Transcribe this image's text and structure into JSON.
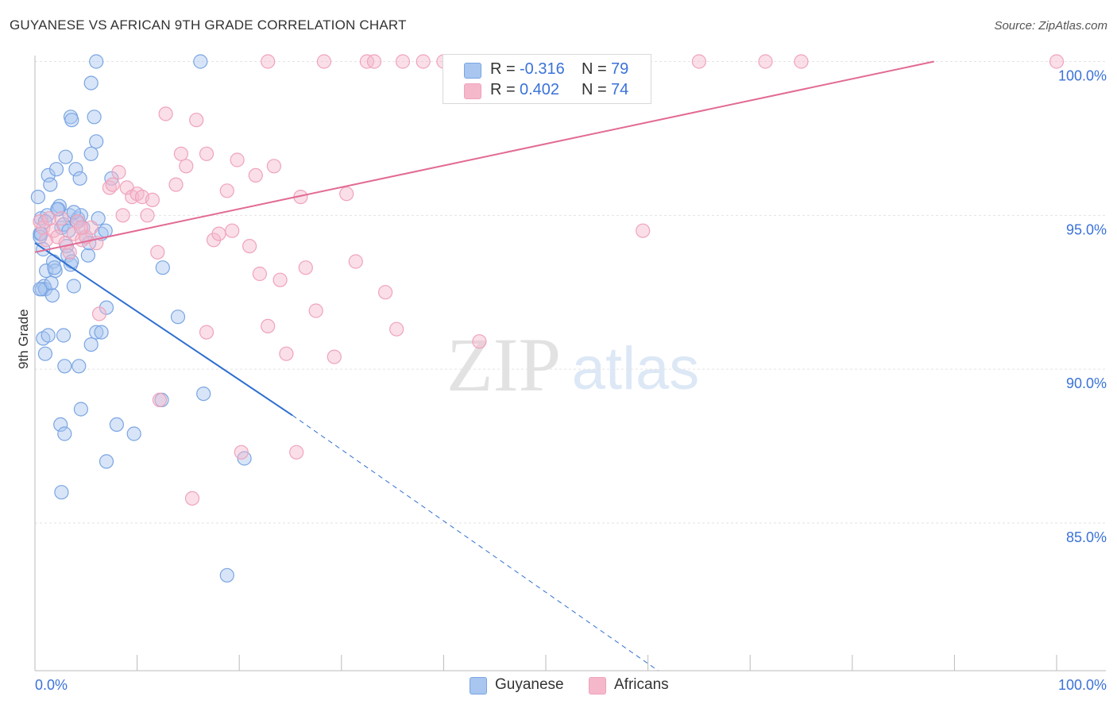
{
  "header": {
    "title": "GUYANESE VS AFRICAN 9TH GRADE CORRELATION CHART",
    "source": "Source: ZipAtlas.com"
  },
  "watermark": {
    "zip": "ZIP",
    "atlas": "atlas"
  },
  "legend": {
    "rows": [
      {
        "r_label": "R =",
        "r_value": "-0.316",
        "n_label": "N =",
        "n_value": "79",
        "color": "#a8c6ef"
      },
      {
        "r_label": "R =",
        "r_value": "0.402",
        "n_label": "N =",
        "n_value": "74",
        "color": "#f5b8cb"
      }
    ]
  },
  "bottom_legend": [
    {
      "label": "Guyanese",
      "color": "#a8c6ef"
    },
    {
      "label": "Africans",
      "color": "#f5b8cb"
    }
  ],
  "chart_data": {
    "type": "scatter",
    "title": "GUYANESE VS AFRICAN 9TH GRADE CORRELATION CHART",
    "xlabel": "",
    "ylabel": "9th Grade",
    "xlim": [
      0,
      100
    ],
    "ylim": [
      80.2,
      100.4
    ],
    "x_tick_labels": [
      "0.0%",
      "100.0%"
    ],
    "y_ticks": [
      85,
      90,
      95,
      100
    ],
    "y_tick_labels": [
      "85.0%",
      "90.0%",
      "95.0%",
      "100.0%"
    ],
    "grid": true,
    "legend_position": "top-center",
    "series": [
      {
        "name": "Guyanese",
        "color": "#7aa5e3",
        "fill": "#a8c6ef",
        "line_color": "#2e6fd0",
        "trend": {
          "x0": 0,
          "y0": 94.1,
          "x1": 25.2,
          "y1": 88.5,
          "dash_to_x": 61,
          "dash_to_y": 80.2
        },
        "points": [
          [
            0.3,
            95.6
          ],
          [
            0.5,
            94.4
          ],
          [
            0.6,
            94.9
          ],
          [
            0.5,
            94.3
          ],
          [
            0.8,
            93.9
          ],
          [
            0.9,
            92.7
          ],
          [
            0.7,
            92.6
          ],
          [
            1.0,
            92.6
          ],
          [
            1.2,
            95.0
          ],
          [
            1.1,
            93.2
          ],
          [
            1.3,
            96.3
          ],
          [
            1.5,
            96.0
          ],
          [
            1.7,
            92.4
          ],
          [
            1.6,
            92.8
          ],
          [
            1.8,
            93.5
          ],
          [
            2.0,
            93.2
          ],
          [
            2.1,
            96.5
          ],
          [
            2.3,
            95.2
          ],
          [
            2.4,
            95.3
          ],
          [
            2.6,
            94.6
          ],
          [
            2.8,
            94.7
          ],
          [
            3.0,
            96.9
          ],
          [
            3.1,
            94.0
          ],
          [
            3.2,
            93.7
          ],
          [
            3.4,
            95.0
          ],
          [
            3.5,
            93.4
          ],
          [
            3.6,
            93.5
          ],
          [
            3.8,
            92.7
          ],
          [
            4.0,
            96.5
          ],
          [
            4.2,
            94.9
          ],
          [
            4.4,
            96.2
          ],
          [
            4.5,
            95.0
          ],
          [
            4.7,
            94.6
          ],
          [
            5.0,
            94.3
          ],
          [
            5.2,
            93.7
          ],
          [
            5.5,
            97.0
          ],
          [
            5.8,
            98.2
          ],
          [
            6.0,
            97.4
          ],
          [
            6.2,
            94.9
          ],
          [
            6.5,
            94.4
          ],
          [
            3.5,
            98.2
          ],
          [
            3.6,
            98.1
          ],
          [
            5.5,
            99.3
          ],
          [
            6.0,
            100.0
          ],
          [
            0.8,
            91.0
          ],
          [
            1.3,
            91.1
          ],
          [
            1.0,
            90.5
          ],
          [
            2.8,
            91.1
          ],
          [
            2.9,
            90.1
          ],
          [
            4.3,
            90.1
          ],
          [
            5.5,
            90.8
          ],
          [
            6.0,
            91.2
          ],
          [
            6.5,
            91.2
          ],
          [
            7.0,
            92.0
          ],
          [
            7.5,
            96.2
          ],
          [
            4.5,
            88.7
          ],
          [
            2.5,
            88.2
          ],
          [
            2.9,
            87.9
          ],
          [
            8.0,
            88.2
          ],
          [
            9.7,
            87.9
          ],
          [
            7.0,
            87.0
          ],
          [
            2.6,
            86.0
          ],
          [
            12.5,
            93.3
          ],
          [
            14.0,
            91.7
          ],
          [
            12.4,
            89.0
          ],
          [
            16.5,
            89.2
          ],
          [
            16.2,
            100.0
          ],
          [
            20.5,
            87.1
          ],
          [
            18.8,
            83.3
          ],
          [
            1.0,
            94.8
          ],
          [
            0.6,
            94.4
          ],
          [
            2.2,
            95.2
          ],
          [
            3.3,
            94.5
          ],
          [
            5.3,
            94.1
          ],
          [
            1.9,
            93.3
          ],
          [
            0.5,
            92.6
          ],
          [
            4.1,
            94.8
          ],
          [
            3.8,
            95.1
          ],
          [
            6.9,
            94.5
          ]
        ]
      },
      {
        "name": "Africans",
        "color": "#f0a3bb",
        "fill": "#f5b8cb",
        "line_color": "#e26a93",
        "trend": {
          "x0": 0,
          "y0": 93.8,
          "x1": 88,
          "y1": 100.0
        },
        "points": [
          [
            0.5,
            94.8
          ],
          [
            0.8,
            94.6
          ],
          [
            1.1,
            94.2
          ],
          [
            1.4,
            94.9
          ],
          [
            1.8,
            94.5
          ],
          [
            2.2,
            94.3
          ],
          [
            2.6,
            94.9
          ],
          [
            3.0,
            94.1
          ],
          [
            3.4,
            93.8
          ],
          [
            3.8,
            94.4
          ],
          [
            4.2,
            94.8
          ],
          [
            4.6,
            94.2
          ],
          [
            5.0,
            94.3
          ],
          [
            5.5,
            94.6
          ],
          [
            6.0,
            94.1
          ],
          [
            7.3,
            95.9
          ],
          [
            7.6,
            96.0
          ],
          [
            8.2,
            96.4
          ],
          [
            8.6,
            95.0
          ],
          [
            9.0,
            95.9
          ],
          [
            9.5,
            95.6
          ],
          [
            10.0,
            95.7
          ],
          [
            10.5,
            95.6
          ],
          [
            11.0,
            95.0
          ],
          [
            11.5,
            95.5
          ],
          [
            12.0,
            93.8
          ],
          [
            12.8,
            98.3
          ],
          [
            13.8,
            96.0
          ],
          [
            14.3,
            97.0
          ],
          [
            14.8,
            96.6
          ],
          [
            15.8,
            98.1
          ],
          [
            16.8,
            97.0
          ],
          [
            17.5,
            94.2
          ],
          [
            18.0,
            94.4
          ],
          [
            18.8,
            95.8
          ],
          [
            19.3,
            94.5
          ],
          [
            19.8,
            96.8
          ],
          [
            20.2,
            87.3
          ],
          [
            21.0,
            94.0
          ],
          [
            21.6,
            96.3
          ],
          [
            22.0,
            93.1
          ],
          [
            22.8,
            91.4
          ],
          [
            23.4,
            96.6
          ],
          [
            24.0,
            92.9
          ],
          [
            24.6,
            90.5
          ],
          [
            25.6,
            87.3
          ],
          [
            26.0,
            95.6
          ],
          [
            26.5,
            93.3
          ],
          [
            27.5,
            91.9
          ],
          [
            28.3,
            100.0
          ],
          [
            29.3,
            90.4
          ],
          [
            30.5,
            95.7
          ],
          [
            31.4,
            93.5
          ],
          [
            32.5,
            100.0
          ],
          [
            33.2,
            100.0
          ],
          [
            34.3,
            92.5
          ],
          [
            35.4,
            91.3
          ],
          [
            36.0,
            100.0
          ],
          [
            38.0,
            100.0
          ],
          [
            40.0,
            100.0
          ],
          [
            43.5,
            90.9
          ],
          [
            47.0,
            100.0
          ],
          [
            51.5,
            100.0
          ],
          [
            59.5,
            94.5
          ],
          [
            65.0,
            100.0
          ],
          [
            71.5,
            100.0
          ],
          [
            75.0,
            100.0
          ],
          [
            100.0,
            100.0
          ],
          [
            6.3,
            91.8
          ],
          [
            12.2,
            89.0
          ],
          [
            15.4,
            85.8
          ],
          [
            22.8,
            100.0
          ],
          [
            16.8,
            91.2
          ],
          [
            4.5,
            94.6
          ]
        ]
      }
    ]
  }
}
